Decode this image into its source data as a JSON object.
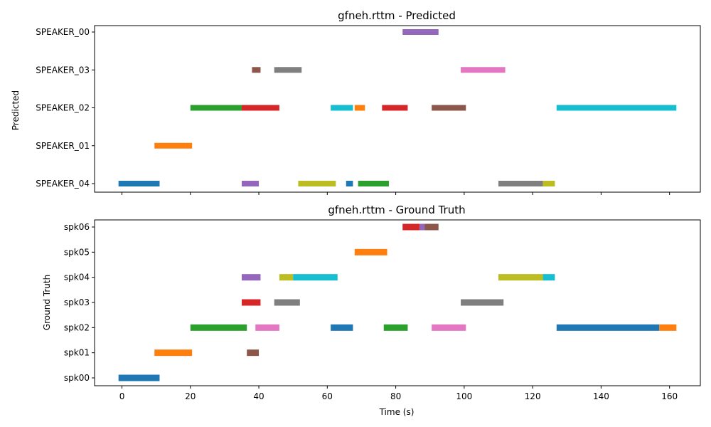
{
  "chart_data": [
    {
      "type": "timeline",
      "title": "gfneh.rttm - Predicted",
      "xlabel": "",
      "ylabel": "Predicted",
      "xlim": [
        -8,
        169
      ],
      "xticks": [
        0,
        20,
        40,
        60,
        80,
        100,
        120,
        140,
        160
      ],
      "show_xtick_labels": false,
      "rows": [
        "SPEAKER_04",
        "SPEAKER_01",
        "SPEAKER_02",
        "SPEAKER_03",
        "SPEAKER_00"
      ],
      "segments": [
        {
          "row": "SPEAKER_00",
          "start": 82.0,
          "end": 92.5,
          "color": "#9467bd"
        },
        {
          "row": "SPEAKER_03",
          "start": 38.0,
          "end": 40.5,
          "color": "#8c564b"
        },
        {
          "row": "SPEAKER_03",
          "start": 44.5,
          "end": 52.5,
          "color": "#7f7f7f"
        },
        {
          "row": "SPEAKER_03",
          "start": 99.0,
          "end": 112.0,
          "color": "#e377c2"
        },
        {
          "row": "SPEAKER_02",
          "start": 20.0,
          "end": 35.0,
          "color": "#2ca02c"
        },
        {
          "row": "SPEAKER_02",
          "start": 35.0,
          "end": 46.0,
          "color": "#d62728"
        },
        {
          "row": "SPEAKER_02",
          "start": 61.0,
          "end": 67.5,
          "color": "#17becf"
        },
        {
          "row": "SPEAKER_02",
          "start": 68.0,
          "end": 71.0,
          "color": "#ff7f0e"
        },
        {
          "row": "SPEAKER_02",
          "start": 76.0,
          "end": 83.5,
          "color": "#d62728"
        },
        {
          "row": "SPEAKER_02",
          "start": 90.5,
          "end": 100.5,
          "color": "#8c564b"
        },
        {
          "row": "SPEAKER_02",
          "start": 127.0,
          "end": 162.0,
          "color": "#17becf"
        },
        {
          "row": "SPEAKER_01",
          "start": 9.5,
          "end": 20.5,
          "color": "#ff7f0e"
        },
        {
          "row": "SPEAKER_04",
          "start": -1.0,
          "end": 11.0,
          "color": "#1f77b4"
        },
        {
          "row": "SPEAKER_04",
          "start": 35.0,
          "end": 40.0,
          "color": "#9467bd"
        },
        {
          "row": "SPEAKER_04",
          "start": 51.5,
          "end": 62.5,
          "color": "#bcbd22"
        },
        {
          "row": "SPEAKER_04",
          "start": 65.5,
          "end": 67.5,
          "color": "#1f77b4"
        },
        {
          "row": "SPEAKER_04",
          "start": 69.0,
          "end": 78.0,
          "color": "#2ca02c"
        },
        {
          "row": "SPEAKER_04",
          "start": 110.0,
          "end": 123.0,
          "color": "#7f7f7f"
        },
        {
          "row": "SPEAKER_04",
          "start": 123.0,
          "end": 126.5,
          "color": "#bcbd22"
        }
      ]
    },
    {
      "type": "timeline",
      "title": "gfneh.rttm - Ground Truth",
      "xlabel": "Time (s)",
      "ylabel": "Ground Truth",
      "xlim": [
        -8,
        169
      ],
      "xticks": [
        0,
        20,
        40,
        60,
        80,
        100,
        120,
        140,
        160
      ],
      "show_xtick_labels": true,
      "rows": [
        "spk00",
        "spk01",
        "spk02",
        "spk03",
        "spk04",
        "spk05",
        "spk06"
      ],
      "segments": [
        {
          "row": "spk06",
          "start": 82.0,
          "end": 87.0,
          "color": "#d62728"
        },
        {
          "row": "spk06",
          "start": 87.0,
          "end": 88.5,
          "color": "#9467bd"
        },
        {
          "row": "spk06",
          "start": 88.5,
          "end": 92.5,
          "color": "#8c564b"
        },
        {
          "row": "spk05",
          "start": 68.0,
          "end": 77.5,
          "color": "#ff7f0e"
        },
        {
          "row": "spk04",
          "start": 35.0,
          "end": 40.5,
          "color": "#9467bd"
        },
        {
          "row": "spk04",
          "start": 46.0,
          "end": 50.0,
          "color": "#bcbd22"
        },
        {
          "row": "spk04",
          "start": 50.0,
          "end": 63.0,
          "color": "#17becf"
        },
        {
          "row": "spk04",
          "start": 110.0,
          "end": 123.0,
          "color": "#bcbd22"
        },
        {
          "row": "spk04",
          "start": 123.0,
          "end": 126.5,
          "color": "#17becf"
        },
        {
          "row": "spk03",
          "start": 35.0,
          "end": 40.5,
          "color": "#d62728"
        },
        {
          "row": "spk03",
          "start": 44.5,
          "end": 52.0,
          "color": "#7f7f7f"
        },
        {
          "row": "spk03",
          "start": 99.0,
          "end": 111.5,
          "color": "#7f7f7f"
        },
        {
          "row": "spk02",
          "start": 20.0,
          "end": 36.5,
          "color": "#2ca02c"
        },
        {
          "row": "spk02",
          "start": 39.0,
          "end": 46.0,
          "color": "#e377c2"
        },
        {
          "row": "spk02",
          "start": 61.0,
          "end": 67.5,
          "color": "#1f77b4"
        },
        {
          "row": "spk02",
          "start": 76.5,
          "end": 83.5,
          "color": "#2ca02c"
        },
        {
          "row": "spk02",
          "start": 90.5,
          "end": 100.5,
          "color": "#e377c2"
        },
        {
          "row": "spk02",
          "start": 127.0,
          "end": 157.0,
          "color": "#1f77b4"
        },
        {
          "row": "spk02",
          "start": 157.0,
          "end": 162.0,
          "color": "#ff7f0e"
        },
        {
          "row": "spk01",
          "start": 9.5,
          "end": 20.5,
          "color": "#ff7f0e"
        },
        {
          "row": "spk01",
          "start": 36.5,
          "end": 40.0,
          "color": "#8c564b"
        },
        {
          "row": "spk00",
          "start": -1.0,
          "end": 11.0,
          "color": "#1f77b4"
        }
      ]
    }
  ]
}
